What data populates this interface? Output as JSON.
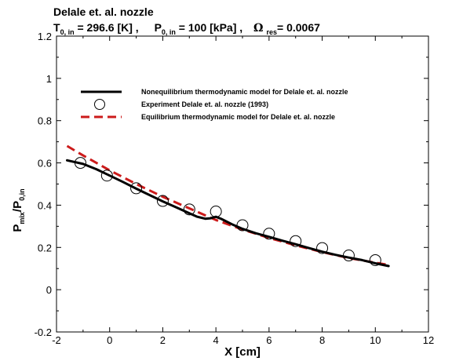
{
  "header": {
    "line1": "Delale et. al. nozzle",
    "t_main": "T",
    "t_sub": "0, in",
    "t_rest": " = 296.6 [K] ,",
    "p_main": "P",
    "p_sub": "0, in",
    "p_rest": " = 100 [kPa] ,",
    "omega_main": "Ω",
    "omega_sub": "res",
    "omega_rest": "= 0.0067"
  },
  "chart_data": {
    "type": "line",
    "xlabel": "X [cm]",
    "ylabel_main1": "P",
    "ylabel_sub1": "mix",
    "ylabel_main2": "/P",
    "ylabel_sub2": "0,in",
    "xlim": [
      -2,
      12
    ],
    "ylim": [
      -0.2,
      1.2
    ],
    "xticks": [
      -2,
      0,
      2,
      4,
      6,
      8,
      10,
      12
    ],
    "yticks": [
      -0.2,
      0,
      0.2,
      0.4,
      0.6,
      0.8,
      1,
      1.2
    ],
    "xtick_labels": [
      "-2",
      "0",
      "2",
      "4",
      "6",
      "8",
      "10",
      "12"
    ],
    "ytick_labels": [
      "-0.2",
      "0",
      "0.2",
      "0.4",
      "0.6",
      "0.8",
      "1",
      "1.2"
    ],
    "legend_position": "top",
    "series": [
      {
        "name": "Nonequilibrium thermodynamic model for Delale et. al. nozzle",
        "style": "solid",
        "color": "#000000",
        "x": [
          -1.6,
          -1.0,
          -0.5,
          0.0,
          0.5,
          1.0,
          1.5,
          2.0,
          2.5,
          3.0,
          3.3,
          3.6,
          3.8,
          4.0,
          4.2,
          4.6,
          5.0,
          5.5,
          6.0,
          6.5,
          7.0,
          7.5,
          8.0,
          8.5,
          9.0,
          9.5,
          10.0,
          10.5
        ],
        "y": [
          0.612,
          0.595,
          0.57,
          0.54,
          0.51,
          0.478,
          0.448,
          0.418,
          0.39,
          0.362,
          0.345,
          0.336,
          0.338,
          0.345,
          0.335,
          0.31,
          0.288,
          0.267,
          0.25,
          0.232,
          0.215,
          0.197,
          0.18,
          0.165,
          0.152,
          0.14,
          0.125,
          0.112
        ]
      },
      {
        "name": "Experiment Delale et. al. nozzle (1993)",
        "style": "circle",
        "color": "#000000",
        "x": [
          -1.1,
          -0.1,
          1.0,
          2.0,
          3.0,
          4.0,
          5.0,
          6.0,
          7.0,
          8.0,
          9.0,
          10.0
        ],
        "y": [
          0.6,
          0.54,
          0.48,
          0.42,
          0.38,
          0.37,
          0.305,
          0.265,
          0.23,
          0.197,
          0.162,
          0.14
        ]
      },
      {
        "name": "Equilibrium thermodynamic model for Delale et. al. nozzle",
        "style": "dashed",
        "color": "#cc1b1b",
        "x": [
          -1.6,
          -1.0,
          0.0,
          1.0,
          2.0,
          3.0,
          4.0,
          5.0,
          6.0,
          7.0,
          8.0,
          9.0,
          10.0,
          10.5
        ],
        "y": [
          0.68,
          0.635,
          0.565,
          0.5,
          0.44,
          0.385,
          0.33,
          0.285,
          0.245,
          0.21,
          0.178,
          0.15,
          0.128,
          0.117
        ]
      }
    ]
  }
}
